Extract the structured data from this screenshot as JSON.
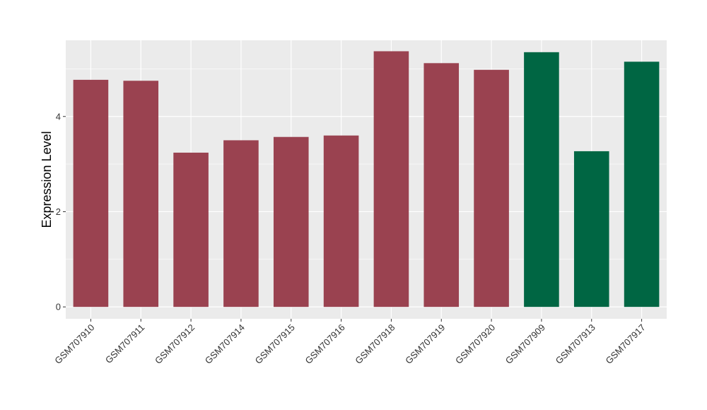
{
  "chart_data": {
    "type": "bar",
    "title": "",
    "xlabel": "",
    "ylabel": "Expression Level",
    "ylim": [
      -0.25,
      5.6
    ],
    "yticks": [
      0,
      2,
      4
    ],
    "grid": true,
    "legend": "none",
    "panel_background": "#ebebeb",
    "gridline_color": "#ffffff",
    "categories": [
      "GSM707910",
      "GSM707911",
      "GSM707912",
      "GSM707914",
      "GSM707915",
      "GSM707916",
      "GSM707918",
      "GSM707919",
      "GSM707920",
      "GSM707909",
      "GSM707913",
      "GSM707917"
    ],
    "values": [
      4.77,
      4.75,
      3.24,
      3.5,
      3.57,
      3.6,
      5.37,
      5.12,
      4.98,
      5.35,
      3.27,
      5.15
    ],
    "bar_colors": [
      "#9a4250",
      "#9a4250",
      "#9a4250",
      "#9a4250",
      "#9a4250",
      "#9a4250",
      "#9a4250",
      "#9a4250",
      "#9a4250",
      "#006643",
      "#006643",
      "#006643"
    ]
  }
}
